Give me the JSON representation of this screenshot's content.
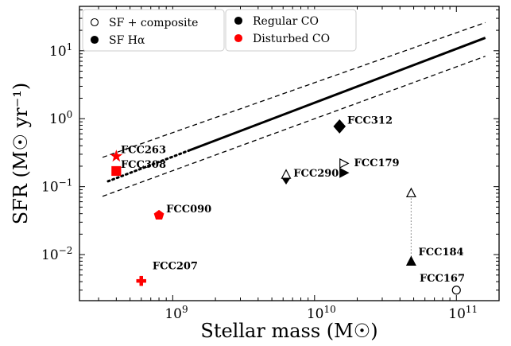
{
  "chart_data": {
    "type": "scatter",
    "xlabel": "Stellar mass (M☉)",
    "ylabel": "SFR (M☉ yr⁻¹)",
    "x_scale": "log",
    "y_scale": "log",
    "xlim": [
      220000000.0,
      200000000000.0
    ],
    "ylim": [
      0.0021,
      45
    ],
    "x_ticks": [
      {
        "value": 1000000000.0,
        "base": "10",
        "exp": "9"
      },
      {
        "value": 10000000000.0,
        "base": "10",
        "exp": "10"
      },
      {
        "value": 100000000000.0,
        "base": "10",
        "exp": "11"
      }
    ],
    "y_ticks": [
      {
        "value": 0.01,
        "base": "10",
        "exp": "−2"
      },
      {
        "value": 0.1,
        "base": "10",
        "exp": "−1"
      },
      {
        "value": 1,
        "base": "10",
        "exp": "0"
      },
      {
        "value": 10,
        "base": "10",
        "exp": "1"
      }
    ],
    "legend": {
      "placement": "top-left",
      "col1": [
        {
          "label": "SF + composite",
          "marker": "circle-open"
        },
        {
          "label": "SF Hα",
          "marker": "circle-filled"
        }
      ],
      "col2": [
        {
          "label": "Regular CO",
          "marker": "circle-filled",
          "color": "#000000"
        },
        {
          "label": "Disturbed CO",
          "marker": "circle-filled",
          "color": "#ff0000"
        }
      ]
    },
    "relation": {
      "solid": [
        [
          1300000000.0,
          0.34
        ],
        [
          160000000000.0,
          15.5
        ]
      ],
      "dotted": [
        [
          350000000.0,
          0.12
        ],
        [
          1300000000.0,
          0.34
        ]
      ],
      "upper_dashed": [
        [
          320000000.0,
          0.27
        ],
        [
          160000000000.0,
          26
        ]
      ],
      "lower_dashed": [
        [
          320000000.0,
          0.072
        ],
        [
          160000000000.0,
          8.3
        ]
      ]
    },
    "points": [
      {
        "name": "FCC263",
        "x": 400000000.0,
        "y": 0.28,
        "marker": "star",
        "color": "#ff0000",
        "filled": true
      },
      {
        "name": "FCC308",
        "x": 400000000.0,
        "y": 0.17,
        "marker": "square",
        "color": "#ff0000",
        "filled": true
      },
      {
        "name": "FCC090",
        "x": 800000000.0,
        "y": 0.038,
        "marker": "pentagon",
        "color": "#ff0000",
        "filled": true
      },
      {
        "name": "FCC207",
        "x": 600000000.0,
        "y": 0.0041,
        "marker": "plus",
        "color": "#ff0000",
        "filled": true
      },
      {
        "name": "FCC312",
        "x": 15000000000.0,
        "y": 0.77,
        "marker": "diamond",
        "color": "#000000",
        "filled": true
      },
      {
        "name": "FCC290",
        "x": 6300000000.0,
        "y": 0.13,
        "marker": "thin-diamond",
        "color": "#000000",
        "filled": true
      },
      {
        "name": "FCC290 (SF + composite)",
        "x": 6300000000.0,
        "y": 0.15,
        "marker": "triangle-up",
        "color": "#000000",
        "filled": false
      },
      {
        "name": "FCC179",
        "x": 16000000000.0,
        "y": 0.16,
        "marker": "triangle-right",
        "color": "#000000",
        "filled": true
      },
      {
        "name": "FCC179 (SF + composite)",
        "x": 16000000000.0,
        "y": 0.22,
        "marker": "triangle-right",
        "color": "#000000",
        "filled": false
      },
      {
        "name": "FCC184",
        "x": 48000000000.0,
        "y": 0.0079,
        "marker": "triangle-up",
        "color": "#000000",
        "filled": true
      },
      {
        "name": "FCC184 (SF + composite)",
        "x": 48000000000.0,
        "y": 0.08,
        "marker": "triangle-up",
        "color": "#000000",
        "filled": false
      },
      {
        "name": "FCC167",
        "x": 100000000000.0,
        "y": 0.003,
        "marker": "circle",
        "color": "#000000",
        "filled": false
      }
    ],
    "connectors": [
      {
        "from": [
          48000000000.0,
          0.0079
        ],
        "to": [
          48000000000.0,
          0.08
        ],
        "style": "dotted"
      }
    ],
    "labels": [
      {
        "text": "FCC263",
        "x": 430000000.0,
        "y": 0.31
      },
      {
        "text": "FCC308",
        "x": 430000000.0,
        "y": 0.19
      },
      {
        "text": "FCC090",
        "x": 900000000.0,
        "y": 0.042
      },
      {
        "text": "FCC207",
        "x": 720000000.0,
        "y": 0.0061
      },
      {
        "text": "FCC312",
        "x": 17000000000.0,
        "y": 0.85
      },
      {
        "text": "FCC290",
        "x": 7100000000.0,
        "y": 0.14
      },
      {
        "text": "FCC179",
        "x": 19000000000.0,
        "y": 0.2
      },
      {
        "text": "FCC184",
        "x": 54000000000.0,
        "y": 0.0097
      },
      {
        "text": "FCC167",
        "x": 55000000000.0,
        "y": 0.004
      }
    ]
  }
}
